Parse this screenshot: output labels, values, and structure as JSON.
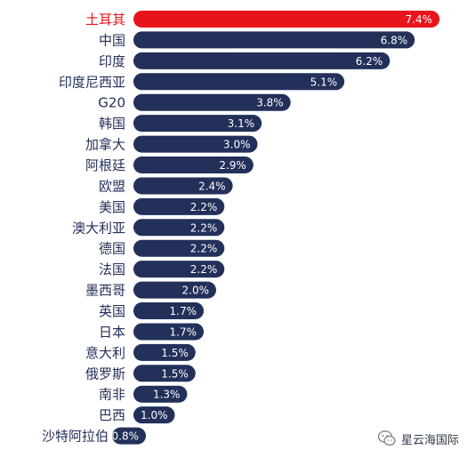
{
  "chart_data": {
    "type": "bar",
    "orientation": "horizontal",
    "categories": [
      "土耳其",
      "中国",
      "印度",
      "印度尼西亚",
      "G20",
      "韩国",
      "加拿大",
      "阿根廷",
      "欧盟",
      "美国",
      "澳大利亚",
      "德国",
      "法国",
      "墨西哥",
      "英国",
      "日本",
      "意大利",
      "俄罗斯",
      "南非",
      "巴西",
      "沙特阿拉伯"
    ],
    "values": [
      7.4,
      6.8,
      6.2,
      5.1,
      3.8,
      3.1,
      3.0,
      2.9,
      2.4,
      2.2,
      2.2,
      2.2,
      2.2,
      2.0,
      1.7,
      1.7,
      1.5,
      1.5,
      1.3,
      1.0,
      -0.8
    ],
    "value_labels": [
      "7.4%",
      "6.8%",
      "6.2%",
      "5.1%",
      "3.8%",
      "3.1%",
      "3.0%",
      "2.9%",
      "2.4%",
      "2.2%",
      "2.2%",
      "2.2%",
      "2.2%",
      "2.0%",
      "1.7%",
      "1.7%",
      "1.5%",
      "1.5%",
      "1.3%",
      "1.0%",
      "-0.8%"
    ],
    "highlight_index": 0,
    "colors": {
      "highlight": "#e8141c",
      "default": "#22305a",
      "highlight_text": "#e8141c",
      "default_text": "#24305a"
    },
    "grid": false,
    "legend": "none"
  },
  "watermark": {
    "text": "星云海国际",
    "icon": "wechat-icon"
  }
}
